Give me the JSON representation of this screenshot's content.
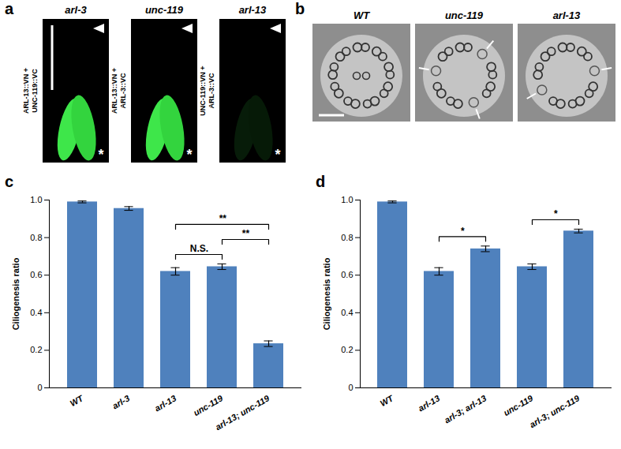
{
  "panels": {
    "a": {
      "letter": "a",
      "columns": [
        "arl-3",
        "unc-119",
        "arl-13"
      ],
      "row_labels": [
        "ARL-13::VN + UNC-119::VC",
        "ARL-13::VN + ARL-3::VC",
        "UNC-119::VN + ARL-3::VC"
      ],
      "bifc_signal": [
        true,
        true,
        false
      ],
      "marker": "*"
    },
    "b": {
      "letter": "b",
      "columns": [
        "WT",
        "unc-119",
        "arl-13"
      ]
    }
  },
  "chart_data": [
    {
      "type": "bar",
      "title": "c",
      "y_label": "Ciliogenesis ratio",
      "categories": [
        "WT",
        "arl-3",
        "arl-13",
        "unc-119",
        "arl-13; unc-119"
      ],
      "values": [
        0.99,
        0.955,
        0.62,
        0.645,
        0.235
      ],
      "errors": [
        0.005,
        0.01,
        0.02,
        0.015,
        0.015
      ],
      "color": "#4f81bd",
      "ylim": [
        0,
        1
      ],
      "yticks": [
        0,
        0.2,
        0.4,
        0.6,
        0.8,
        {
          "value": 1,
          "label": "1.0"
        }
      ],
      "grid": false,
      "annotations": [
        {
          "from": "arl-13",
          "to": "unc-119",
          "label": "N.S."
        },
        {
          "from": "arl-13",
          "to": "arl-13; unc-119",
          "label": "**"
        },
        {
          "from": "unc-119",
          "to": "arl-13; unc-119",
          "label": "**"
        }
      ]
    },
    {
      "type": "bar",
      "title": "d",
      "y_label": "Ciliogenesis ratio",
      "categories": [
        "WT",
        "arl-13",
        "arl-3; arl-13",
        "unc-119",
        "arl-3; unc-119"
      ],
      "values": [
        0.99,
        0.62,
        0.74,
        0.645,
        0.835
      ],
      "errors": [
        0.005,
        0.02,
        0.015,
        0.015,
        0.01
      ],
      "color": "#4f81bd",
      "ylim": [
        0,
        1
      ],
      "yticks": [
        0,
        0.2,
        0.4,
        0.6,
        0.8,
        {
          "value": 1,
          "label": "1.0"
        }
      ],
      "grid": false,
      "annotations": [
        {
          "from": "arl-13",
          "to": "arl-3; arl-13",
          "label": "*"
        },
        {
          "from": "unc-119",
          "to": "arl-3; unc-119",
          "label": "*"
        }
      ]
    }
  ]
}
